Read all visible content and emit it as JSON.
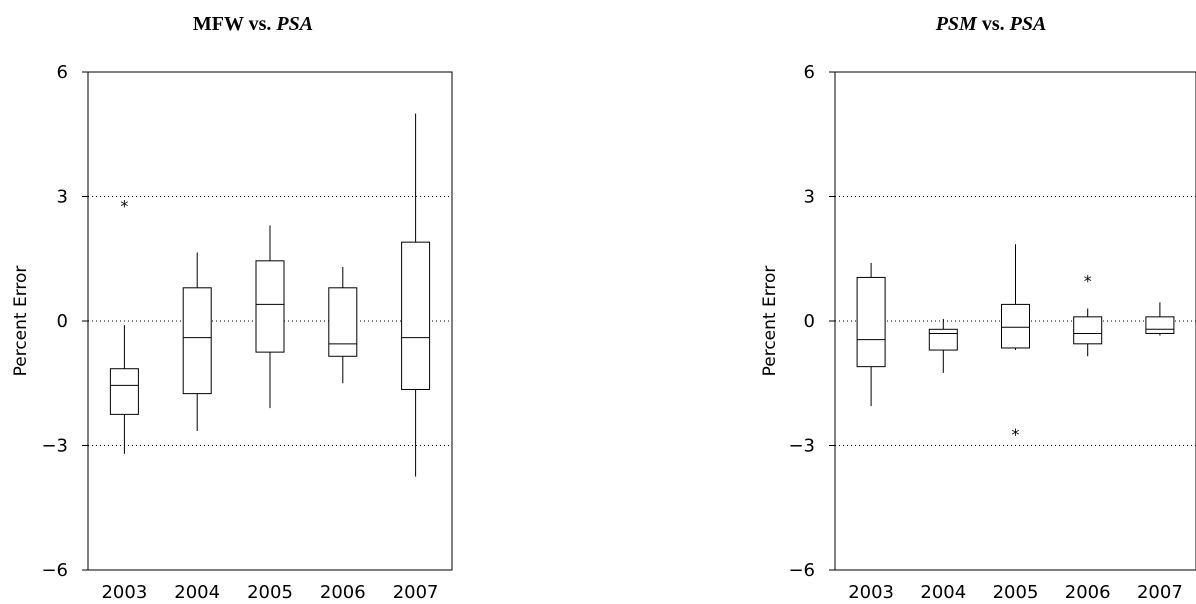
{
  "chart_data": [
    {
      "type": "box",
      "title_parts": [
        {
          "text": "MFW vs. ",
          "italic": false
        },
        {
          "text": "PSA",
          "italic": true
        }
      ],
      "ylabel": "Percent Error",
      "xlabel": "",
      "ylim": [
        -6,
        6
      ],
      "yticks": [
        -6,
        -3,
        0,
        3,
        6
      ],
      "ytick_labels": [
        "−6",
        "−3",
        "0",
        "3",
        "6"
      ],
      "grid_lines": [
        -3,
        0,
        3
      ],
      "grid": "dotted",
      "categories": [
        "2003",
        "2004",
        "2005",
        "2006",
        "2007"
      ],
      "boxes": [
        {
          "whisker_low": -3.2,
          "q1": -2.25,
          "median": -1.55,
          "q3": -1.15,
          "whisker_high": -0.1,
          "outliers": [
            2.9
          ]
        },
        {
          "whisker_low": -2.65,
          "q1": -1.75,
          "median": -0.4,
          "q3": 0.8,
          "whisker_high": 1.65,
          "outliers": []
        },
        {
          "whisker_low": -2.1,
          "q1": -0.75,
          "median": 0.4,
          "q3": 1.45,
          "whisker_high": 2.3,
          "outliers": []
        },
        {
          "whisker_low": -1.5,
          "q1": -0.85,
          "median": -0.55,
          "q3": 0.8,
          "whisker_high": 1.3,
          "outliers": []
        },
        {
          "whisker_low": -3.75,
          "q1": -1.65,
          "median": -0.4,
          "q3": 1.9,
          "whisker_high": 5.0,
          "outliers": []
        }
      ]
    },
    {
      "type": "box",
      "title_parts": [
        {
          "text": "PSM",
          "italic": true
        },
        {
          "text": " vs. ",
          "italic": false
        },
        {
          "text": "PSA",
          "italic": true
        }
      ],
      "ylabel": "Percent Error",
      "xlabel": "",
      "ylim": [
        -6,
        6
      ],
      "yticks": [
        -6,
        -3,
        0,
        3,
        6
      ],
      "ytick_labels": [
        "−6",
        "−3",
        "0",
        "3",
        "6"
      ],
      "grid_lines": [
        -3,
        0,
        3
      ],
      "grid": "dotted",
      "categories": [
        "2003",
        "2004",
        "2005",
        "2006",
        "2007"
      ],
      "boxes": [
        {
          "whisker_low": -2.05,
          "q1": -1.1,
          "median": -0.45,
          "q3": 1.05,
          "whisker_high": 1.4,
          "outliers": []
        },
        {
          "whisker_low": -1.25,
          "q1": -0.7,
          "median": -0.3,
          "q3": -0.2,
          "whisker_high": 0.05,
          "outliers": []
        },
        {
          "whisker_low": -0.7,
          "q1": -0.65,
          "median": -0.15,
          "q3": 0.4,
          "whisker_high": 1.85,
          "outliers": [
            -2.6
          ]
        },
        {
          "whisker_low": -0.85,
          "q1": -0.55,
          "median": -0.3,
          "q3": 0.1,
          "whisker_high": 0.3,
          "outliers": [
            1.1
          ]
        },
        {
          "whisker_low": -0.35,
          "q1": -0.3,
          "median": -0.2,
          "q3": 0.1,
          "whisker_high": 0.45,
          "outliers": []
        }
      ]
    }
  ]
}
